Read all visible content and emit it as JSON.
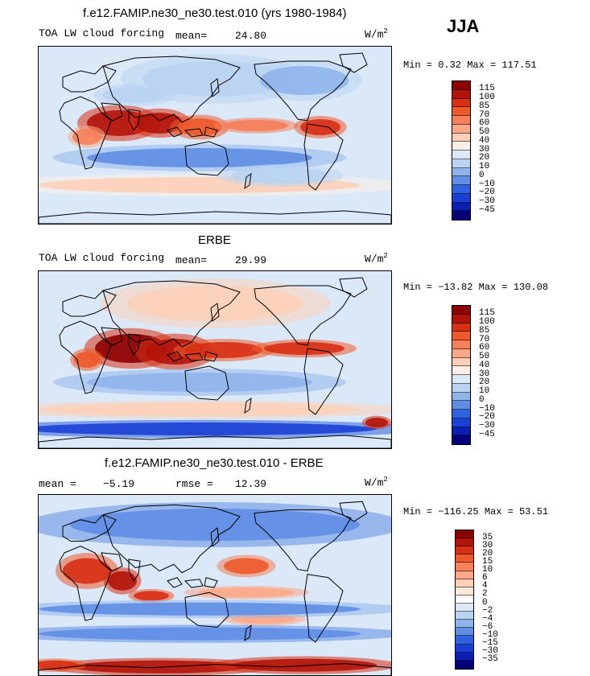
{
  "season": "JJA",
  "panels": [
    {
      "title": "f.e12.FAMIP.ne30_ne30.test.010 (yrs 1980-1984)",
      "left_label": "TOA LW cloud forcing",
      "stat1_label": "mean=",
      "stat1_value": "24.80",
      "units": "W/m",
      "units_exp": "2",
      "range_text": "Min =   0.32 Max = 117.51",
      "colorbar": {
        "levels": [
          "115",
          "100",
          "85",
          "70",
          "60",
          "50",
          "40",
          "30",
          "20",
          "10",
          "0",
          "−10",
          "−20",
          "−30",
          "−45"
        ],
        "colors": [
          "#8b0000",
          "#b3140a",
          "#d73014",
          "#ee5a2b",
          "#f5805a",
          "#fba888",
          "#fcd0b8",
          "#fbeee6",
          "#dbe8f8",
          "#b9d3f2",
          "#8fb4ec",
          "#5f8ee4",
          "#2f62df",
          "#1a3fd4",
          "#0b1fb3",
          "#03007a"
        ]
      },
      "map_kind": "model"
    },
    {
      "title": "ERBE",
      "left_label": "TOA LW cloud forcing",
      "stat1_label": "mean=",
      "stat1_value": "29.99",
      "units": "W/m",
      "units_exp": "2",
      "range_text": "Min = −13.82 Max = 130.08",
      "colorbar": {
        "levels": [
          "115",
          "100",
          "85",
          "70",
          "60",
          "50",
          "40",
          "30",
          "20",
          "10",
          "0",
          "−10",
          "−20",
          "−30",
          "−45"
        ],
        "colors": [
          "#8b0000",
          "#b3140a",
          "#d73014",
          "#ee5a2b",
          "#f5805a",
          "#fba888",
          "#fcd0b8",
          "#fbeee6",
          "#dbe8f8",
          "#b9d3f2",
          "#8fb4ec",
          "#5f8ee4",
          "#2f62df",
          "#1a3fd4",
          "#0b1fb3",
          "#03007a"
        ]
      },
      "map_kind": "obs"
    },
    {
      "title": "f.e12.FAMIP.ne30_ne30.test.010 - ERBE",
      "left_label": "mean =",
      "left_value": "−5.19",
      "stat1_label": "rmse =",
      "stat1_value": "12.39",
      "units": "W/m",
      "units_exp": "2",
      "range_text": "Min = −116.25 Max =  53.51",
      "colorbar": {
        "levels": [
          "35",
          "30",
          "20",
          "15",
          "10",
          "6",
          "4",
          "2",
          "0",
          "−2",
          "−4",
          "−6",
          "−10",
          "−15",
          "−30",
          "−35"
        ],
        "colors": [
          "#8b0000",
          "#b3140a",
          "#d73014",
          "#ee5a2b",
          "#f5805a",
          "#fba888",
          "#fcd0b8",
          "#fde8dc",
          "#ffffff",
          "#dbe8f8",
          "#b9d3f2",
          "#8fb4ec",
          "#5f8ee4",
          "#2f62df",
          "#1a3fd4",
          "#0b1fb3",
          "#03007a"
        ]
      },
      "map_kind": "diff"
    }
  ]
}
